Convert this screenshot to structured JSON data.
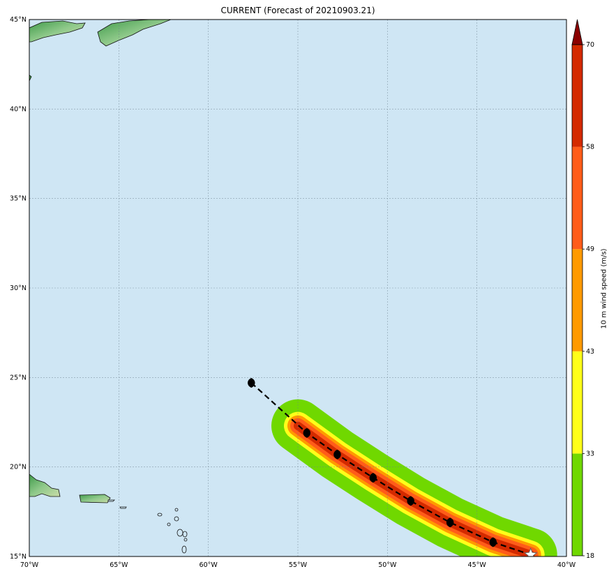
{
  "title": "CURRENT (Forecast of 20210903.21)",
  "map": {
    "lon_range": [
      -70,
      -40
    ],
    "lat_range": [
      15,
      45
    ],
    "lon_ticks": [
      "70°W",
      "65°W",
      "60°W",
      "55°W",
      "50°W",
      "45°W",
      "40°W"
    ],
    "lat_ticks": [
      "15°N",
      "20°N",
      "25°N",
      "30°N",
      "35°N",
      "40°N",
      "45°N"
    ],
    "ocean_color": "#cfe6f4",
    "gridlines": true
  },
  "track": {
    "points": [
      {
        "lon": -57.6,
        "lat": 24.7
      },
      {
        "lon": -54.5,
        "lat": 21.9
      },
      {
        "lon": -52.8,
        "lat": 20.7
      },
      {
        "lon": -50.8,
        "lat": 19.4
      },
      {
        "lon": -48.7,
        "lat": 18.1
      },
      {
        "lon": -46.5,
        "lat": 16.9
      },
      {
        "lon": -44.1,
        "lat": 15.8
      },
      {
        "lon": -42.0,
        "lat": 15.1
      }
    ],
    "current_marker": "star-icon",
    "line_style": "dashed",
    "line_color": "#000000"
  },
  "wind_swath": {
    "path": [
      {
        "lon": -55.0,
        "lat": 22.3
      },
      {
        "lon": -52.8,
        "lat": 20.7
      },
      {
        "lon": -50.8,
        "lat": 19.4
      },
      {
        "lon": -48.7,
        "lat": 18.1
      },
      {
        "lon": -46.5,
        "lat": 16.9
      },
      {
        "lon": -44.1,
        "lat": 15.8
      },
      {
        "lon": -42.0,
        "lat": 15.1
      }
    ],
    "bands": [
      {
        "min": 18,
        "color": "#70d800"
      },
      {
        "min": 33,
        "color": "#ffff1a"
      },
      {
        "min": 43,
        "color": "#ff9a00"
      },
      {
        "min": 49,
        "color": "#ff5c1a"
      },
      {
        "min": 58,
        "color": "#d42a00"
      }
    ]
  },
  "colorbar": {
    "label": "10 m wind speed (m/s)",
    "ticks": [
      "18",
      "33",
      "43",
      "49",
      "58",
      "70"
    ],
    "colors": [
      "#70d800",
      "#ffff1a",
      "#ff9a00",
      "#ff5c1a",
      "#d42a00",
      "#c42800"
    ],
    "extend_color": "#8b0000"
  }
}
